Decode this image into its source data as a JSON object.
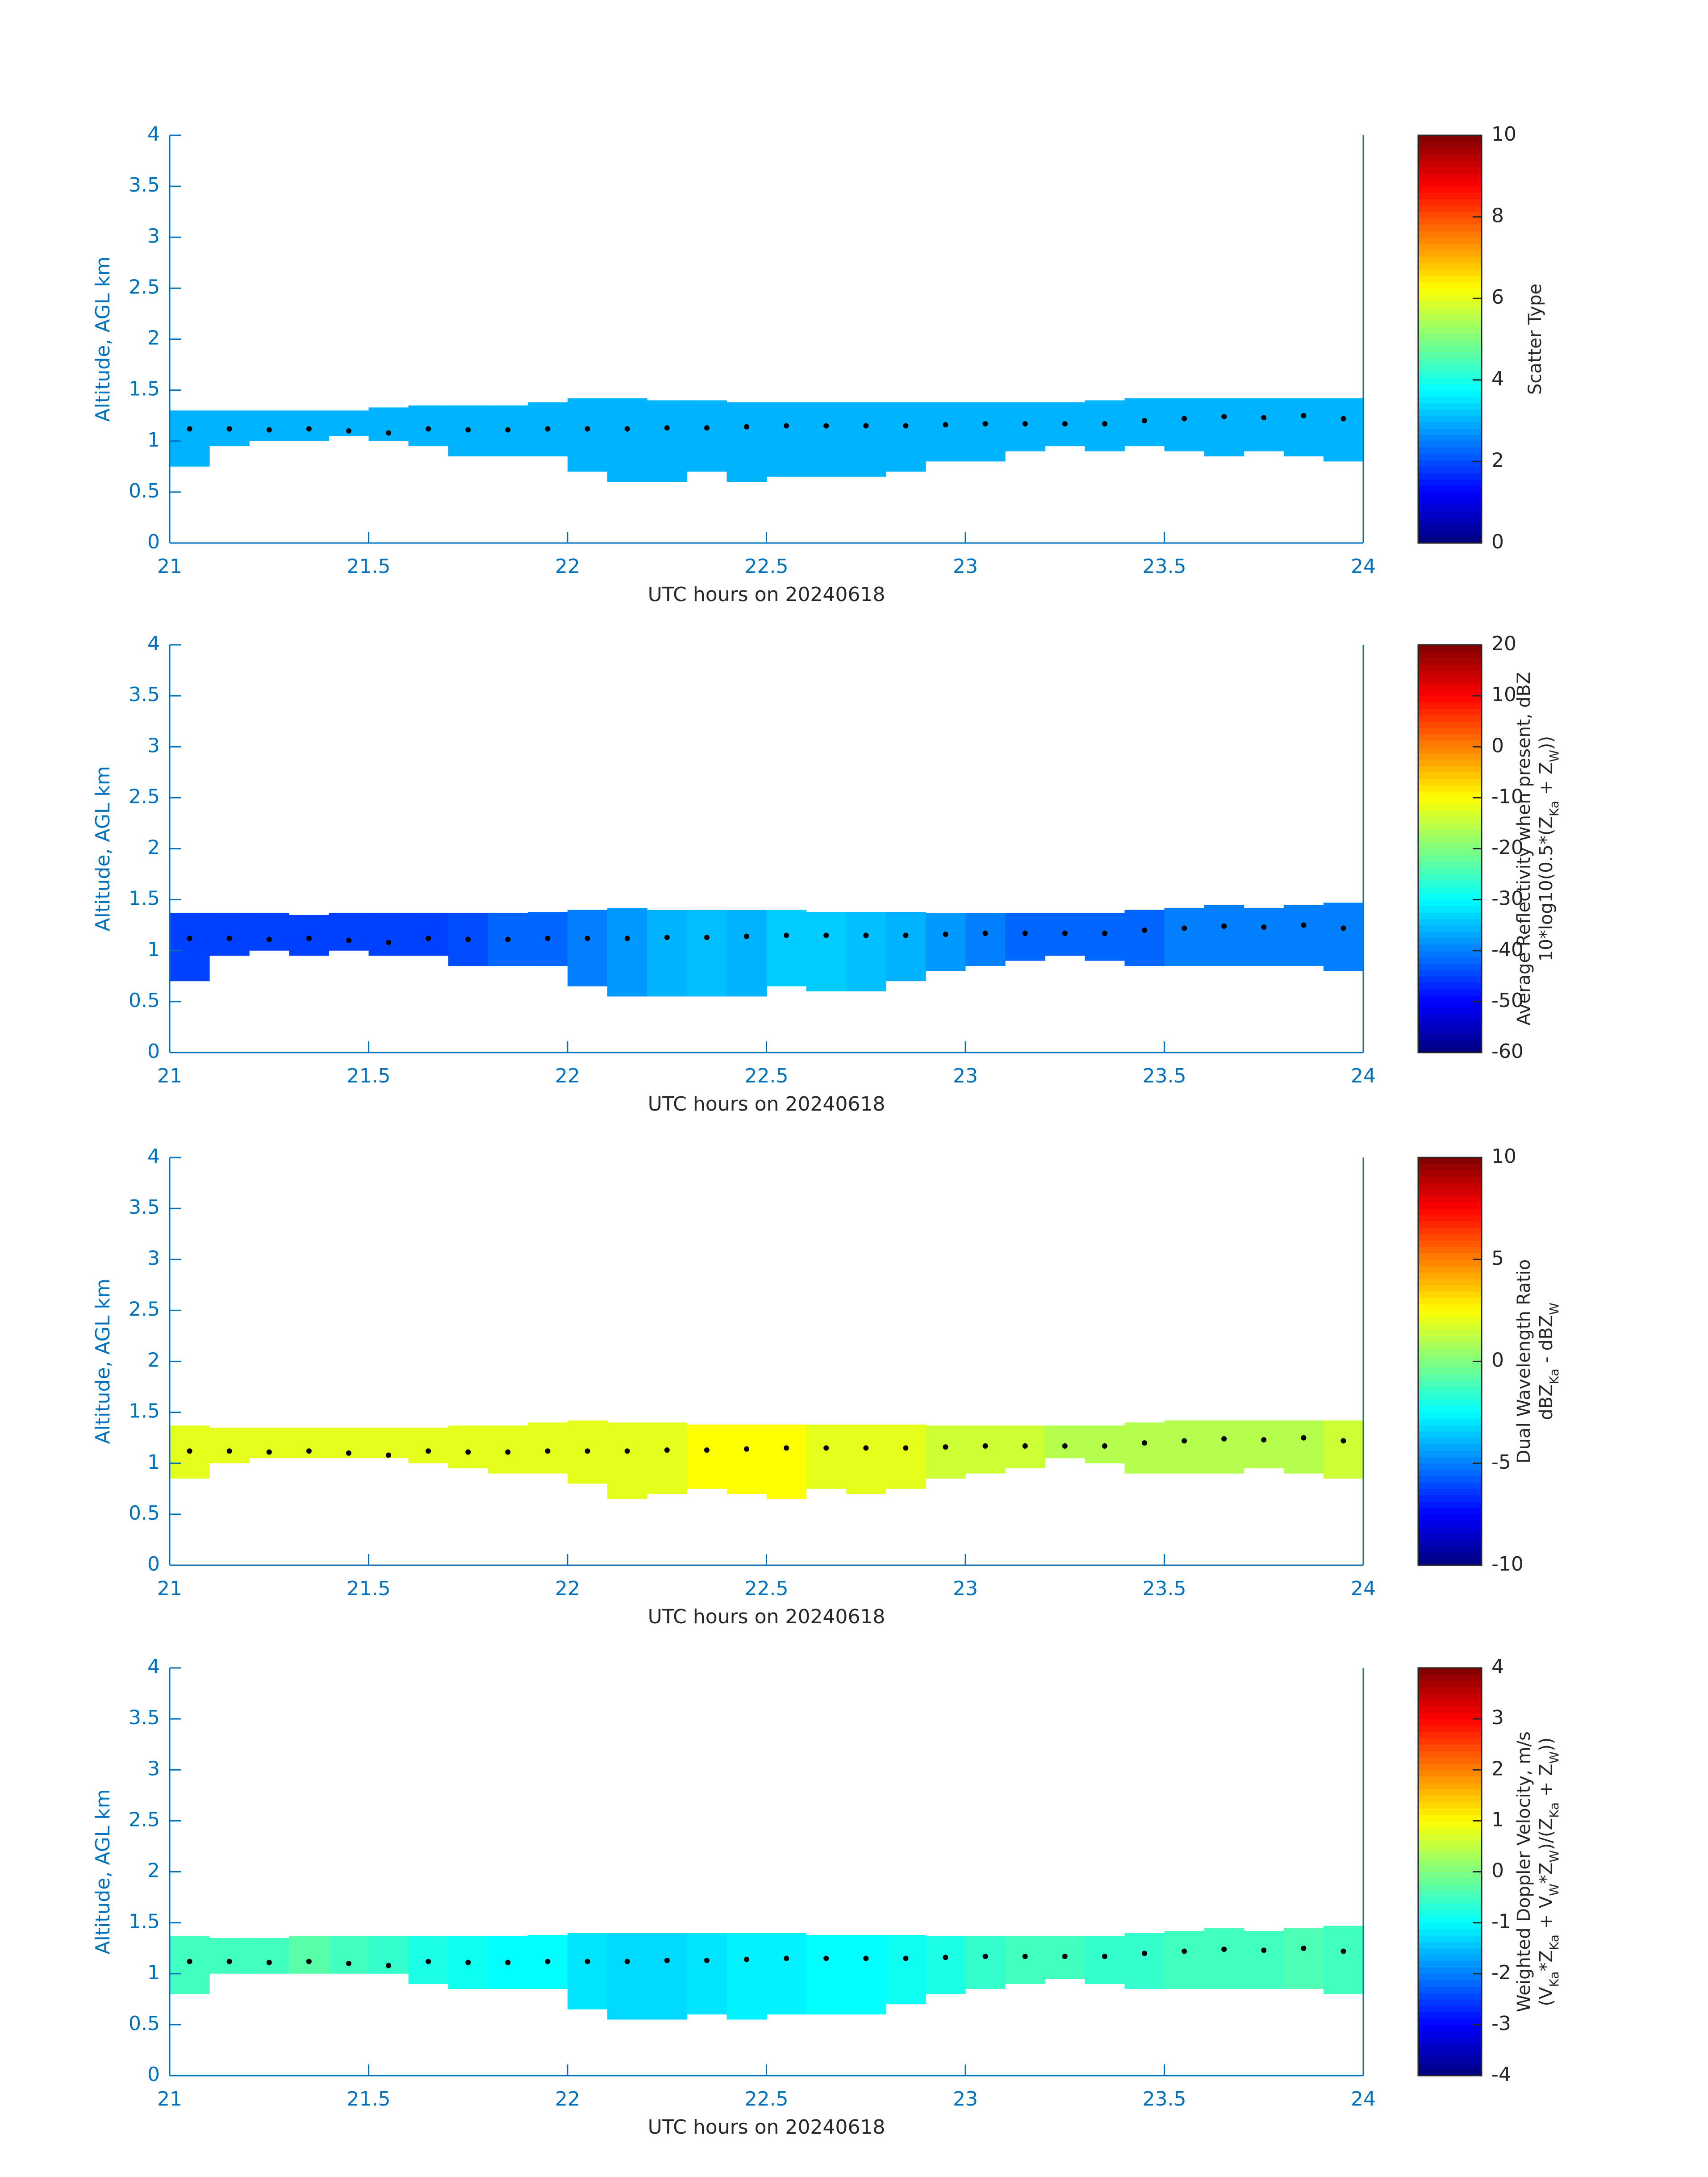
{
  "chart_data": [
    {
      "type": "heatmap",
      "xlabel": "UTC hours on 20240618",
      "ylabel": "Altitude, AGL km",
      "xlim": [
        21,
        24
      ],
      "xticks": [
        21,
        21.5,
        22,
        22.5,
        23,
        23.5,
        24
      ],
      "ylim": [
        0,
        4
      ],
      "yticks": [
        0,
        0.5,
        1,
        1.5,
        2,
        2.5,
        3,
        3.5,
        4
      ],
      "colormap": "jet",
      "clim": [
        0,
        10
      ],
      "cticks": [
        0,
        2,
        4,
        6,
        8,
        10
      ],
      "clabel": [
        [
          "Scatter Type"
        ]
      ],
      "x": [
        21.05,
        21.15,
        21.25,
        21.35,
        21.45,
        21.55,
        21.65,
        21.75,
        21.85,
        21.95,
        22.05,
        22.15,
        22.25,
        22.35,
        22.45,
        22.55,
        22.65,
        22.75,
        22.85,
        22.95,
        23.05,
        23.15,
        23.25,
        23.35,
        23.45,
        23.55,
        23.65,
        23.75,
        23.85,
        23.95
      ],
      "top": [
        1.3,
        1.3,
        1.3,
        1.3,
        1.3,
        1.33,
        1.35,
        1.35,
        1.35,
        1.38,
        1.42,
        1.42,
        1.4,
        1.4,
        1.38,
        1.38,
        1.38,
        1.38,
        1.38,
        1.38,
        1.38,
        1.38,
        1.38,
        1.4,
        1.42,
        1.42,
        1.42,
        1.42,
        1.42,
        1.42
      ],
      "base": [
        0.75,
        0.95,
        1.0,
        1.0,
        1.05,
        1.0,
        0.95,
        0.85,
        0.85,
        0.85,
        0.7,
        0.6,
        0.6,
        0.7,
        0.6,
        0.65,
        0.65,
        0.65,
        0.7,
        0.8,
        0.8,
        0.9,
        0.95,
        0.9,
        0.95,
        0.9,
        0.85,
        0.9,
        0.85,
        0.8
      ],
      "values": [
        3,
        3,
        3,
        3,
        3,
        3,
        3,
        3,
        3,
        3,
        3,
        3,
        3,
        3,
        3,
        3,
        3,
        3,
        3,
        3,
        3,
        3,
        3,
        3,
        3,
        3,
        3,
        3,
        3,
        3
      ],
      "line": [
        1.12,
        1.12,
        1.11,
        1.12,
        1.1,
        1.08,
        1.12,
        1.11,
        1.11,
        1.12,
        1.12,
        1.12,
        1.13,
        1.13,
        1.14,
        1.15,
        1.15,
        1.15,
        1.15,
        1.16,
        1.17,
        1.17,
        1.17,
        1.17,
        1.2,
        1.22,
        1.24,
        1.23,
        1.25,
        1.22
      ]
    },
    {
      "type": "heatmap",
      "xlabel": "UTC hours on 20240618",
      "ylabel": "Altitude, AGL km",
      "xlim": [
        21,
        24
      ],
      "xticks": [
        21,
        21.5,
        22,
        22.5,
        23,
        23.5,
        24
      ],
      "ylim": [
        0,
        4
      ],
      "yticks": [
        0,
        0.5,
        1,
        1.5,
        2,
        2.5,
        3,
        3.5,
        4
      ],
      "colormap": "jet",
      "clim": [
        -60,
        20
      ],
      "cticks": [
        -60,
        -50,
        -40,
        -30,
        -20,
        -10,
        0,
        10,
        20
      ],
      "clabel": [
        [
          "Average Reflectivity when present, dBZ"
        ],
        [
          "10*log10(0.5*(Z",
          "Ka",
          " + Z",
          "W",
          "))"
        ]
      ],
      "x": [
        21.05,
        21.15,
        21.25,
        21.35,
        21.45,
        21.55,
        21.65,
        21.75,
        21.85,
        21.95,
        22.05,
        22.15,
        22.25,
        22.35,
        22.45,
        22.55,
        22.65,
        22.75,
        22.85,
        22.95,
        23.05,
        23.15,
        23.25,
        23.35,
        23.45,
        23.55,
        23.65,
        23.75,
        23.85,
        23.95
      ],
      "top": [
        1.37,
        1.37,
        1.37,
        1.35,
        1.37,
        1.37,
        1.37,
        1.37,
        1.37,
        1.38,
        1.4,
        1.42,
        1.4,
        1.4,
        1.4,
        1.4,
        1.38,
        1.38,
        1.38,
        1.37,
        1.37,
        1.37,
        1.37,
        1.37,
        1.4,
        1.42,
        1.45,
        1.42,
        1.45,
        1.47
      ],
      "base": [
        0.7,
        0.95,
        1.0,
        0.95,
        1.0,
        0.95,
        0.95,
        0.85,
        0.85,
        0.85,
        0.65,
        0.55,
        0.55,
        0.55,
        0.55,
        0.65,
        0.6,
        0.6,
        0.7,
        0.8,
        0.85,
        0.9,
        0.95,
        0.9,
        0.85,
        0.85,
        0.85,
        0.85,
        0.85,
        0.8
      ],
      "values": [
        -45,
        -45,
        -45,
        -45,
        -45,
        -45,
        -45,
        -44,
        -42,
        -42,
        -40,
        -38,
        -36,
        -35,
        -36,
        -34,
        -34,
        -35,
        -36,
        -38,
        -40,
        -42,
        -42,
        -42,
        -42,
        -40,
        -40,
        -40,
        -40,
        -40
      ],
      "line": [
        1.12,
        1.12,
        1.11,
        1.12,
        1.1,
        1.08,
        1.12,
        1.11,
        1.11,
        1.12,
        1.12,
        1.12,
        1.13,
        1.13,
        1.14,
        1.15,
        1.15,
        1.15,
        1.15,
        1.16,
        1.17,
        1.17,
        1.17,
        1.17,
        1.2,
        1.22,
        1.24,
        1.23,
        1.25,
        1.22
      ]
    },
    {
      "type": "heatmap",
      "xlabel": "UTC hours on 20240618",
      "ylabel": "Altitude, AGL km",
      "xlim": [
        21,
        24
      ],
      "xticks": [
        21,
        21.5,
        22,
        22.5,
        23,
        23.5,
        24
      ],
      "ylim": [
        0,
        4
      ],
      "yticks": [
        0,
        0.5,
        1,
        1.5,
        2,
        2.5,
        3,
        3.5,
        4
      ],
      "colormap": "jet",
      "clim": [
        -10,
        10
      ],
      "cticks": [
        -10,
        -5,
        0,
        5,
        10
      ],
      "clabel": [
        [
          "Dual Wavelength Ratio"
        ],
        [
          "dBZ",
          "Ka",
          " - dBZ",
          "W"
        ]
      ],
      "x": [
        21.05,
        21.15,
        21.25,
        21.35,
        21.45,
        21.55,
        21.65,
        21.75,
        21.85,
        21.95,
        22.05,
        22.15,
        22.25,
        22.35,
        22.45,
        22.55,
        22.65,
        22.75,
        22.85,
        22.95,
        23.05,
        23.15,
        23.25,
        23.35,
        23.45,
        23.55,
        23.65,
        23.75,
        23.85,
        23.95
      ],
      "top": [
        1.37,
        1.35,
        1.35,
        1.35,
        1.35,
        1.35,
        1.35,
        1.37,
        1.37,
        1.4,
        1.42,
        1.4,
        1.4,
        1.38,
        1.38,
        1.38,
        1.38,
        1.38,
        1.38,
        1.37,
        1.37,
        1.37,
        1.37,
        1.37,
        1.4,
        1.42,
        1.42,
        1.42,
        1.42,
        1.42
      ],
      "base": [
        0.85,
        1.0,
        1.05,
        1.05,
        1.05,
        1.05,
        1.0,
        0.95,
        0.9,
        0.9,
        0.8,
        0.65,
        0.7,
        0.75,
        0.7,
        0.65,
        0.75,
        0.7,
        0.75,
        0.85,
        0.9,
        0.95,
        1.05,
        1.0,
        0.9,
        0.9,
        0.9,
        0.95,
        0.9,
        0.85
      ],
      "values": [
        2,
        2,
        2,
        2,
        2,
        2,
        2,
        2,
        2,
        2,
        2,
        2,
        2,
        2.5,
        2.5,
        2.5,
        2,
        2,
        2,
        1.5,
        1.5,
        1.5,
        1,
        1,
        1,
        1,
        1,
        1,
        1,
        1.5
      ],
      "line": [
        1.12,
        1.12,
        1.11,
        1.12,
        1.1,
        1.08,
        1.12,
        1.11,
        1.11,
        1.12,
        1.12,
        1.12,
        1.13,
        1.13,
        1.14,
        1.15,
        1.15,
        1.15,
        1.15,
        1.16,
        1.17,
        1.17,
        1.17,
        1.17,
        1.2,
        1.22,
        1.24,
        1.23,
        1.25,
        1.22
      ]
    },
    {
      "type": "heatmap",
      "xlabel": "UTC hours on 20240618",
      "ylabel": "Altitude, AGL km",
      "xlim": [
        21,
        24
      ],
      "xticks": [
        21,
        21.5,
        22,
        22.5,
        23,
        23.5,
        24
      ],
      "ylim": [
        0,
        4
      ],
      "yticks": [
        0,
        0.5,
        1,
        1.5,
        2,
        2.5,
        3,
        3.5,
        4
      ],
      "colormap": "jet",
      "clim": [
        -4,
        4
      ],
      "cticks": [
        -4,
        -3,
        -2,
        -1,
        0,
        1,
        2,
        3,
        4
      ],
      "clabel": [
        [
          "Weighted Doppler Velocity, m/s"
        ],
        [
          "(V",
          "Ka",
          "*Z",
          "Ka",
          " + V",
          "W",
          "*Z",
          "W",
          ")/(Z",
          "Ka",
          " + Z",
          "W",
          "))"
        ]
      ],
      "x": [
        21.05,
        21.15,
        21.25,
        21.35,
        21.45,
        21.55,
        21.65,
        21.75,
        21.85,
        21.95,
        22.05,
        22.15,
        22.25,
        22.35,
        22.45,
        22.55,
        22.65,
        22.75,
        22.85,
        22.95,
        23.05,
        23.15,
        23.25,
        23.35,
        23.45,
        23.55,
        23.65,
        23.75,
        23.85,
        23.95
      ],
      "top": [
        1.37,
        1.35,
        1.35,
        1.37,
        1.37,
        1.37,
        1.37,
        1.37,
        1.37,
        1.38,
        1.4,
        1.4,
        1.4,
        1.4,
        1.4,
        1.4,
        1.38,
        1.38,
        1.38,
        1.37,
        1.37,
        1.37,
        1.37,
        1.37,
        1.4,
        1.42,
        1.45,
        1.42,
        1.45,
        1.47
      ],
      "base": [
        0.8,
        1.0,
        1.0,
        1.0,
        1.0,
        1.0,
        0.9,
        0.85,
        0.85,
        0.85,
        0.65,
        0.55,
        0.55,
        0.6,
        0.55,
        0.6,
        0.6,
        0.6,
        0.7,
        0.8,
        0.85,
        0.9,
        0.95,
        0.9,
        0.85,
        0.85,
        0.85,
        0.85,
        0.85,
        0.8
      ],
      "values": [
        -0.5,
        -0.5,
        -0.5,
        -0.3,
        -0.5,
        -0.6,
        -0.8,
        -0.9,
        -1,
        -1,
        -1.2,
        -1.3,
        -1.3,
        -1.2,
        -1.1,
        -1.1,
        -1,
        -1,
        -0.9,
        -0.8,
        -0.6,
        -0.5,
        -0.5,
        -0.6,
        -0.6,
        -0.5,
        -0.5,
        -0.5,
        -0.4,
        -0.5
      ],
      "line": [
        1.12,
        1.12,
        1.11,
        1.12,
        1.1,
        1.08,
        1.12,
        1.11,
        1.11,
        1.12,
        1.12,
        1.12,
        1.13,
        1.13,
        1.14,
        1.15,
        1.15,
        1.15,
        1.15,
        1.16,
        1.17,
        1.17,
        1.17,
        1.17,
        1.2,
        1.22,
        1.24,
        1.23,
        1.25,
        1.22
      ]
    }
  ]
}
